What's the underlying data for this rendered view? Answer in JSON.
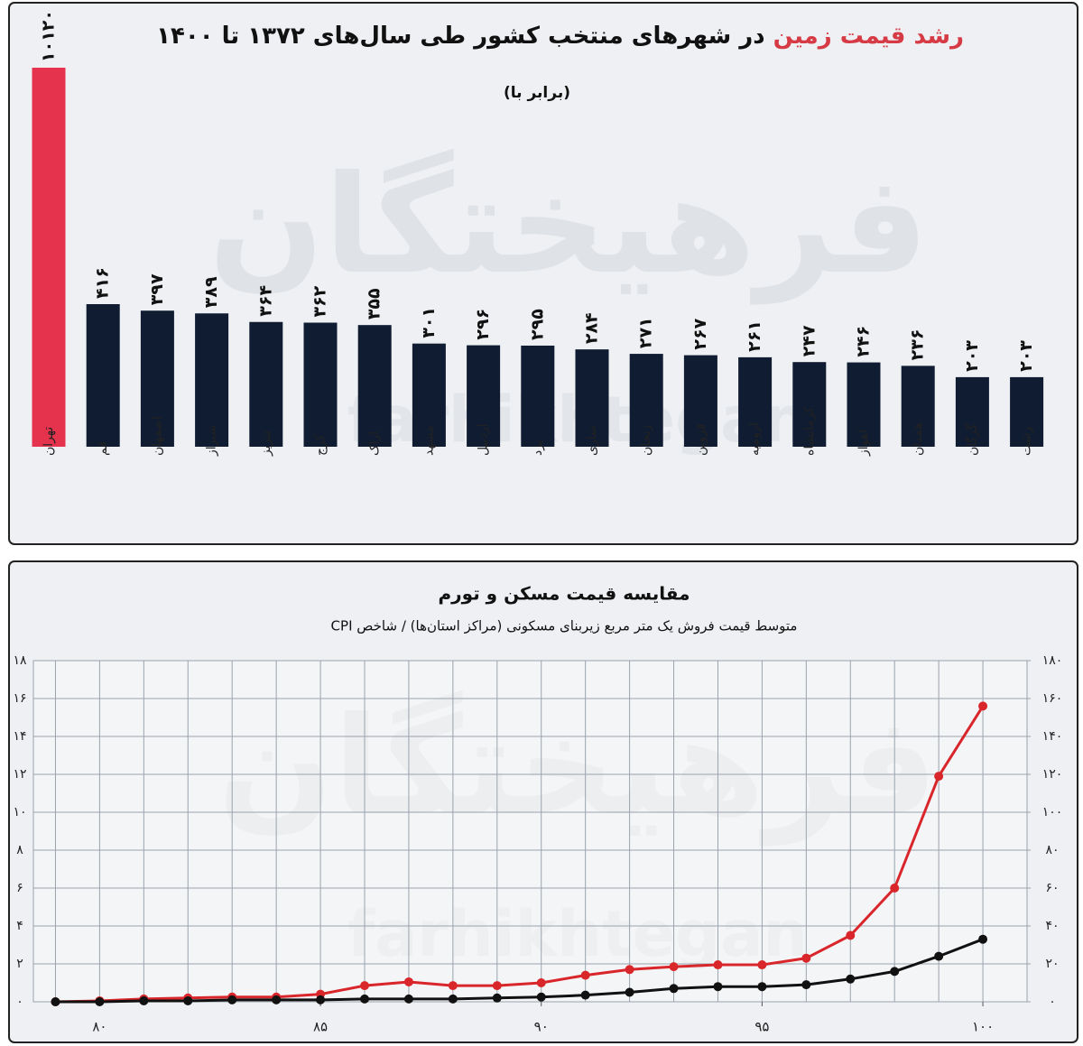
{
  "chart_data": [
    {
      "type": "bar",
      "title_highlight": "رشد قیمت زمین",
      "title": "در شهرهای منتخب کشور طی سال‌های ۱۳۷۲ تا ۱۴۰۰",
      "subtitle": "(برابر با)",
      "watermark": "فرهیختگان",
      "watermark_latin": "farhikhtegan",
      "categories": [
        "تهران",
        "قم",
        "اصفهان",
        "شیراز",
        "تبریز",
        "کرج",
        "اراک",
        "مشهد",
        "اردبیل",
        "یزد",
        "ساری",
        "زنجان",
        "قزوین",
        "ارومیه",
        "کرمانشاه",
        "اهواز",
        "همدان",
        "گرگان",
        "رشت"
      ],
      "values": [
        10120,
        416,
        397,
        389,
        364,
        362,
        355,
        301,
        296,
        295,
        284,
        271,
        267,
        261,
        247,
        246,
        236,
        203,
        203
      ],
      "value_labels": [
        "۱۰۱۲۰",
        "۴۱۶",
        "۳۹۷",
        "۳۸۹",
        "۳۶۴",
        "۳۶۲",
        "۳۵۵",
        "۳۰۱",
        "۲۹۶",
        "۲۹۵",
        "۲۸۴",
        "۲۷۱",
        "۲۶۷",
        "۲۶۱",
        "۲۴۷",
        "۲۴۶",
        "۲۳۶",
        "۲۰۳",
        "۲۰۳"
      ],
      "colors": [
        "#e5334d",
        "#101c31",
        "#101c31",
        "#101c31",
        "#101c31",
        "#101c31",
        "#101c31",
        "#101c31",
        "#101c31",
        "#101c31",
        "#101c31",
        "#101c31",
        "#101c31",
        "#101c31",
        "#101c31",
        "#101c31",
        "#101c31",
        "#101c31",
        "#101c31"
      ]
    },
    {
      "type": "line",
      "title": "مقایسه قیمت مسکن و تورم",
      "subtitle": "متوسط قیمت فروش یک متر مربع زیربنای مسکونی (مراکز استان‌ها) / شاخص CPI",
      "watermark": "فرهیختگان",
      "watermark_latin": "farhikhtegan",
      "x": [
        79,
        80,
        81,
        82,
        83,
        84,
        85,
        86,
        87,
        88,
        89,
        90,
        91,
        92,
        93,
        94,
        95,
        96,
        97,
        98,
        99,
        100
      ],
      "series": [
        {
          "color": "#d9262b",
          "values": [
            0,
            0.05,
            0.15,
            0.2,
            0.25,
            0.25,
            0.4,
            0.85,
            1.05,
            0.85,
            0.85,
            1.0,
            1.4,
            1.7,
            1.85,
            1.95,
            1.95,
            2.3,
            3.5,
            6.0,
            11.9,
            15.6
          ]
        },
        {
          "color": "#111111",
          "axis": "y2",
          "values": [
            0,
            0,
            0.5,
            0.5,
            1,
            1,
            1,
            1.5,
            1.5,
            1.5,
            2,
            2.5,
            3.5,
            5,
            7,
            8,
            8,
            9,
            12,
            16,
            24,
            33
          ]
        }
      ],
      "xlim": [
        78.5,
        101
      ],
      "xticks": [
        {
          "value": 80,
          "label": "۸۰"
        },
        {
          "value": 85,
          "label": "۸۵"
        },
        {
          "value": 90,
          "label": "۹۰"
        },
        {
          "value": 95,
          "label": "۹۵"
        },
        {
          "value": 100,
          "label": "۱۰۰"
        }
      ],
      "ylim": [
        0,
        18
      ],
      "yticks": [
        {
          "value": 0,
          "label": "۰"
        },
        {
          "value": 2,
          "label": "۲"
        },
        {
          "value": 4,
          "label": "۴"
        },
        {
          "value": 6,
          "label": "۶"
        },
        {
          "value": 8,
          "label": "۸"
        },
        {
          "value": 10,
          "label": "۱۰"
        },
        {
          "value": 12,
          "label": "۱۲"
        },
        {
          "value": 14,
          "label": "۱۴"
        },
        {
          "value": 16,
          "label": "۱۶"
        },
        {
          "value": 18,
          "label": "۱۸"
        }
      ],
      "y2lim": [
        0,
        180
      ],
      "y2ticks": [
        {
          "value": 0,
          "label": "۰"
        },
        {
          "value": 20,
          "label": "۲۰"
        },
        {
          "value": 40,
          "label": "۴۰"
        },
        {
          "value": 60,
          "label": "۶۰"
        },
        {
          "value": 80,
          "label": "۸۰"
        },
        {
          "value": 100,
          "label": "۱۰۰"
        },
        {
          "value": 120,
          "label": "۱۲۰"
        },
        {
          "value": 140,
          "label": "۱۴۰"
        },
        {
          "value": 160,
          "label": "۱۶۰"
        },
        {
          "value": 180,
          "label": "۱۸۰"
        }
      ],
      "grid": true
    }
  ]
}
